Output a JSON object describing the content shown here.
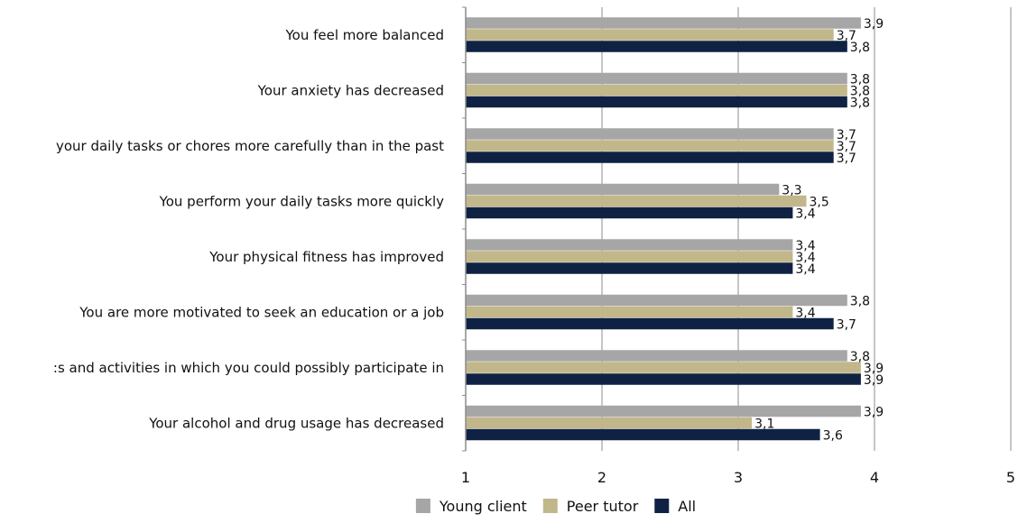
{
  "chart_data": {
    "type": "bar",
    "orientation": "horizontal",
    "title": "",
    "xlabel": "",
    "ylabel": "",
    "xlim": [
      1,
      5
    ],
    "x_ticks": [
      "1",
      "2",
      "3",
      "4",
      "5"
    ],
    "grid": "vertical",
    "legend_position": "bottom",
    "categories": [
      "You feel more balanced",
      "Your anxiety has decreased",
      "your daily tasks or chores more carefully than in the past",
      "You perform your daily tasks more quickly",
      "Your physical fitness has improved",
      "You are more motivated to seek an education or a job",
      ":s and activities in which you could possibly participate in",
      "Your alcohol and drug usage has decreased"
    ],
    "series": [
      {
        "name": "Young client",
        "color": "#a6a6a6",
        "values": [
          3.9,
          3.8,
          3.7,
          3.3,
          3.4,
          3.8,
          3.8,
          3.9
        ],
        "labels": [
          "3,9",
          "3,8",
          "3,7",
          "3,3",
          "3,4",
          "3,8",
          "3,8",
          "3,9"
        ]
      },
      {
        "name": "Peer tutor",
        "color": "#c2b78a",
        "values": [
          3.7,
          3.8,
          3.7,
          3.5,
          3.4,
          3.4,
          3.9,
          3.1
        ],
        "labels": [
          "3,7",
          "3,8",
          "3,7",
          "3,5",
          "3,4",
          "3,4",
          "3,9",
          "3,1"
        ]
      },
      {
        "name": "All",
        "color": "#0f2244",
        "values": [
          3.8,
          3.8,
          3.7,
          3.4,
          3.4,
          3.7,
          3.9,
          3.6
        ],
        "labels": [
          "3,8",
          "3,8",
          "3,7",
          "3,4",
          "3,4",
          "3,7",
          "3,9",
          "3,6"
        ]
      }
    ]
  }
}
